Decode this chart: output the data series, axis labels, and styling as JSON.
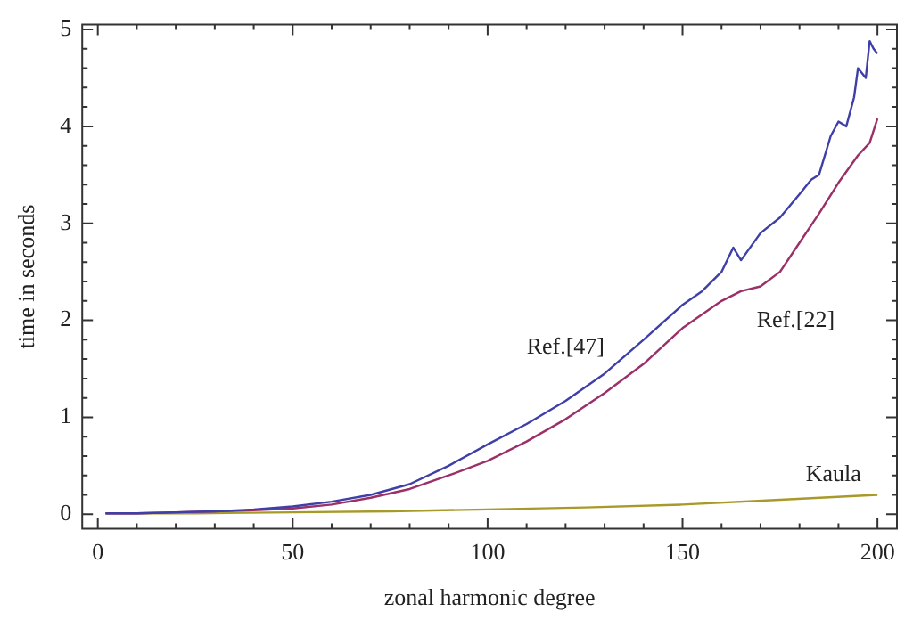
{
  "chart_data": {
    "type": "line",
    "xlabel": "zonal harmonic degree",
    "ylabel": "time in seconds",
    "xlim": [
      -4,
      205
    ],
    "ylim": [
      -0.15,
      5.05
    ],
    "xticks": [
      0,
      {
        "value": 10,
        "label": null
      },
      {
        "value": 20,
        "label": null
      },
      {
        "value": 30,
        "label": null
      },
      {
        "value": 40,
        "label": null
      },
      50,
      {
        "value": 60,
        "label": null
      },
      {
        "value": 70,
        "label": null
      },
      {
        "value": 80,
        "label": null
      },
      {
        "value": 90,
        "label": null
      },
      100,
      {
        "value": 110,
        "label": null
      },
      {
        "value": 120,
        "label": null
      },
      {
        "value": 130,
        "label": null
      },
      {
        "value": 140,
        "label": null
      },
      150,
      {
        "value": 160,
        "label": null
      },
      {
        "value": 170,
        "label": null
      },
      {
        "value": 180,
        "label": null
      },
      {
        "value": 190,
        "label": null
      },
      200
    ],
    "yticks": [
      0,
      {
        "value": 0.2,
        "label": null
      },
      {
        "value": 0.4,
        "label": null
      },
      {
        "value": 0.6,
        "label": null
      },
      {
        "value": 0.8,
        "label": null
      },
      1,
      {
        "value": 1.2,
        "label": null
      },
      {
        "value": 1.4,
        "label": null
      },
      {
        "value": 1.6,
        "label": null
      },
      {
        "value": 1.8,
        "label": null
      },
      2,
      {
        "value": 2.2,
        "label": null
      },
      {
        "value": 2.4,
        "label": null
      },
      {
        "value": 2.6,
        "label": null
      },
      {
        "value": 2.8,
        "label": null
      },
      3,
      {
        "value": 3.2,
        "label": null
      },
      {
        "value": 3.4,
        "label": null
      },
      {
        "value": 3.6,
        "label": null
      },
      {
        "value": 3.8,
        "label": null
      },
      4,
      {
        "value": 4.2,
        "label": null
      },
      {
        "value": 4.4,
        "label": null
      },
      {
        "value": 4.6,
        "label": null
      },
      {
        "value": 4.8,
        "label": null
      },
      5
    ],
    "grid": false,
    "legend": false,
    "marker": "none",
    "line_style": "solid",
    "series": [
      {
        "name": "Ref.[47]",
        "color": "#3f3fa8",
        "x": [
          2,
          10,
          20,
          30,
          40,
          50,
          60,
          70,
          80,
          90,
          100,
          110,
          120,
          130,
          140,
          150,
          155,
          160,
          163,
          165,
          170,
          175,
          180,
          183,
          185,
          188,
          190,
          192,
          194,
          195,
          196,
          197,
          198,
          199,
          200
        ],
        "values": [
          0.01,
          0.01,
          0.02,
          0.03,
          0.05,
          0.08,
          0.13,
          0.2,
          0.31,
          0.5,
          0.72,
          0.93,
          1.17,
          1.45,
          1.8,
          2.16,
          2.3,
          2.5,
          2.75,
          2.62,
          2.9,
          3.06,
          3.3,
          3.45,
          3.5,
          3.9,
          4.05,
          4.0,
          4.3,
          4.6,
          4.55,
          4.5,
          4.88,
          4.8,
          4.75
        ]
      },
      {
        "name": "Ref.[22]",
        "color": "#9b3068",
        "x": [
          2,
          10,
          20,
          30,
          40,
          50,
          60,
          70,
          80,
          90,
          100,
          110,
          120,
          130,
          140,
          150,
          160,
          165,
          170,
          175,
          180,
          185,
          190,
          195,
          198,
          200
        ],
        "values": [
          0.01,
          0.01,
          0.02,
          0.03,
          0.04,
          0.06,
          0.1,
          0.17,
          0.26,
          0.4,
          0.55,
          0.75,
          0.98,
          1.25,
          1.55,
          1.92,
          2.2,
          2.3,
          2.35,
          2.5,
          2.8,
          3.1,
          3.42,
          3.7,
          3.83,
          4.08
        ]
      },
      {
        "name": "Kaula",
        "color": "#a89a2a",
        "x": [
          2,
          25,
          50,
          75,
          100,
          125,
          150,
          175,
          200
        ],
        "values": [
          0.01,
          0.01,
          0.02,
          0.03,
          0.05,
          0.07,
          0.1,
          0.15,
          0.2
        ]
      }
    ]
  }
}
